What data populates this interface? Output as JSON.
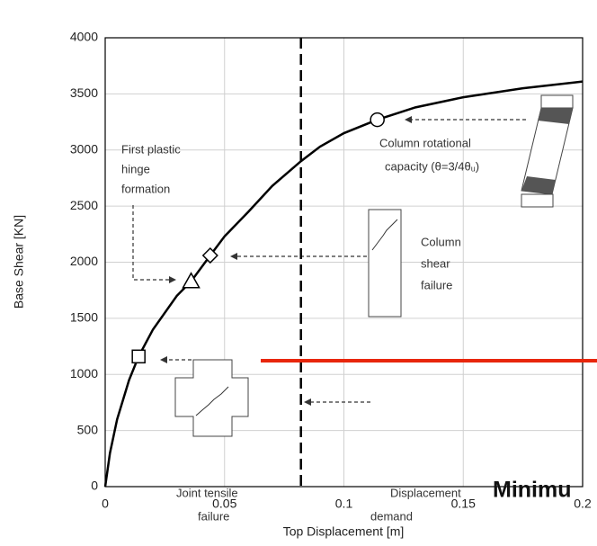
{
  "chart_data": {
    "type": "line",
    "x_label": "Top Displacement [m]",
    "y_label": "Base Shear [KN]",
    "x": [
      0,
      0.002,
      0.005,
      0.01,
      0.014,
      0.02,
      0.03,
      0.036,
      0.044,
      0.05,
      0.06,
      0.07,
      0.082,
      0.09,
      0.1,
      0.114,
      0.13,
      0.15,
      0.175,
      0.2
    ],
    "values": [
      0,
      300,
      600,
      950,
      1160,
      1400,
      1700,
      1830,
      2060,
      2230,
      2450,
      2680,
      2900,
      3030,
      3150,
      3270,
      3380,
      3470,
      3550,
      3610
    ],
    "color": "#000000",
    "xlim": [
      0,
      0.2
    ],
    "xticks": [
      0,
      0.05,
      0.1,
      0.15,
      0.2
    ],
    "ylim": [
      0,
      4000
    ],
    "yticks": [
      0,
      500,
      1000,
      1500,
      2000,
      2500,
      3000,
      3500,
      4000
    ],
    "grid": true,
    "markers": [
      {
        "x": 0.014,
        "y": 1160,
        "shape": "square"
      },
      {
        "x": 0.036,
        "y": 1830,
        "shape": "triangle"
      },
      {
        "x": 0.044,
        "y": 2060,
        "shape": "diamond"
      },
      {
        "x": 0.114,
        "y": 3270,
        "shape": "circle"
      }
    ],
    "demand_x": 0.082,
    "annotations": [
      [
        "First plastic",
        "hinge",
        "formation"
      ],
      [
        "Column rotational",
        "capacity (θ=3/4θᵤ)"
      ],
      [
        "Column",
        "shear",
        "failure"
      ],
      [
        "Joint tensile",
        "failure"
      ],
      [
        "Displacement",
        "demand"
      ]
    ],
    "overlay_text": "Minimu"
  }
}
